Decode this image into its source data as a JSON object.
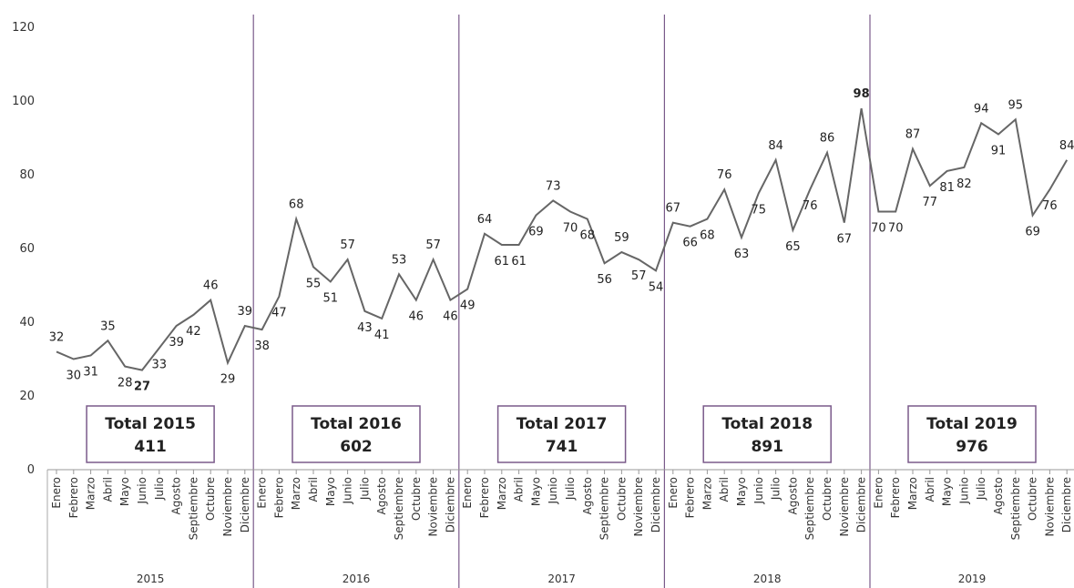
{
  "chart_data": {
    "type": "line",
    "title": "",
    "ylim": [
      0,
      120
    ],
    "yticks": [
      0,
      20,
      40,
      60,
      80,
      100,
      120
    ],
    "grid": false,
    "months": [
      "Enero",
      "Febrero",
      "Marzo",
      "Abril",
      "Mayo",
      "Junio",
      "Julio",
      "Agosto",
      "Septiembre",
      "Octubre",
      "Noviembre",
      "Diciembre"
    ],
    "years": [
      "2015",
      "2016",
      "2017",
      "2018",
      "2019"
    ],
    "series": [
      {
        "values": [
          32,
          30,
          31,
          35,
          28,
          27,
          33,
          39,
          42,
          46,
          29,
          39,
          38,
          47,
          68,
          55,
          51,
          57,
          43,
          41,
          53,
          46,
          57,
          46,
          49,
          64,
          61,
          61,
          69,
          73,
          70,
          68,
          56,
          59,
          57,
          54,
          67,
          66,
          68,
          76,
          63,
          75,
          84,
          65,
          76,
          86,
          67,
          98,
          70,
          70,
          87,
          77,
          81,
          82,
          94,
          91,
          95,
          69,
          76,
          84
        ]
      }
    ],
    "totals": [
      {
        "label": "Total 2015",
        "value": "411"
      },
      {
        "label": "Total 2016",
        "value": "602"
      },
      {
        "label": "Total 2017",
        "value": "741"
      },
      {
        "label": "Total 2018",
        "value": "891"
      },
      {
        "label": "Total 2019",
        "value": "976"
      }
    ],
    "highlights": {
      "min_color": "#2ecc71",
      "max_color": "#e8293b"
    },
    "line_color": "#666666",
    "divider_color": "#7a5a8a",
    "box_border_color": "#7a5a8a"
  }
}
